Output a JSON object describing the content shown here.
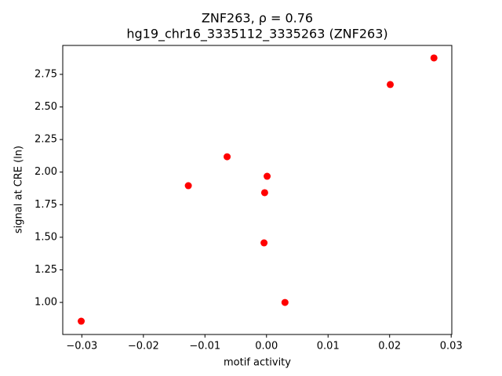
{
  "chart_data": {
    "type": "scatter",
    "title": "ZNF263, ρ = 0.76",
    "subtitle": "hg19_chr16_3335112_3335263 (ZNF263)",
    "x_label": "motif activity",
    "y_label": "signal at CRE (ln)",
    "series": [
      {
        "name": "ZNF263",
        "color": "#ff0000",
        "x": [
          -0.0301,
          -0.0127,
          -0.0064,
          0.0001,
          -0.0003,
          -0.0004,
          0.003,
          0.0201,
          0.0272
        ],
        "values": [
          0.856,
          1.896,
          2.118,
          1.968,
          1.842,
          1.457,
          1.0,
          2.672,
          2.876
        ]
      }
    ],
    "xlim": [
      -0.0331,
      0.0301
    ],
    "ylim": [
      0.754,
      2.972
    ],
    "xticks": [
      {
        "value": -0.03,
        "label": "−0.03"
      },
      {
        "value": -0.02,
        "label": "−0.02"
      },
      {
        "value": -0.01,
        "label": "−0.01"
      },
      {
        "value": 0,
        "label": "0.00"
      },
      {
        "value": 0.01,
        "label": "0.01"
      },
      {
        "value": 0.02,
        "label": "0.02"
      },
      {
        "value": 0.03,
        "label": "0.03"
      }
    ],
    "yticks": [
      {
        "value": 1,
        "label": "1.00"
      },
      {
        "value": 1.25,
        "label": "1.25"
      },
      {
        "value": 1.5,
        "label": "1.50"
      },
      {
        "value": 1.75,
        "label": "1.75"
      },
      {
        "value": 2,
        "label": "2.00"
      },
      {
        "value": 2.25,
        "label": "2.25"
      },
      {
        "value": 2.5,
        "label": "2.50"
      },
      {
        "value": 2.75,
        "label": "2.75"
      }
    ],
    "grid": false
  }
}
